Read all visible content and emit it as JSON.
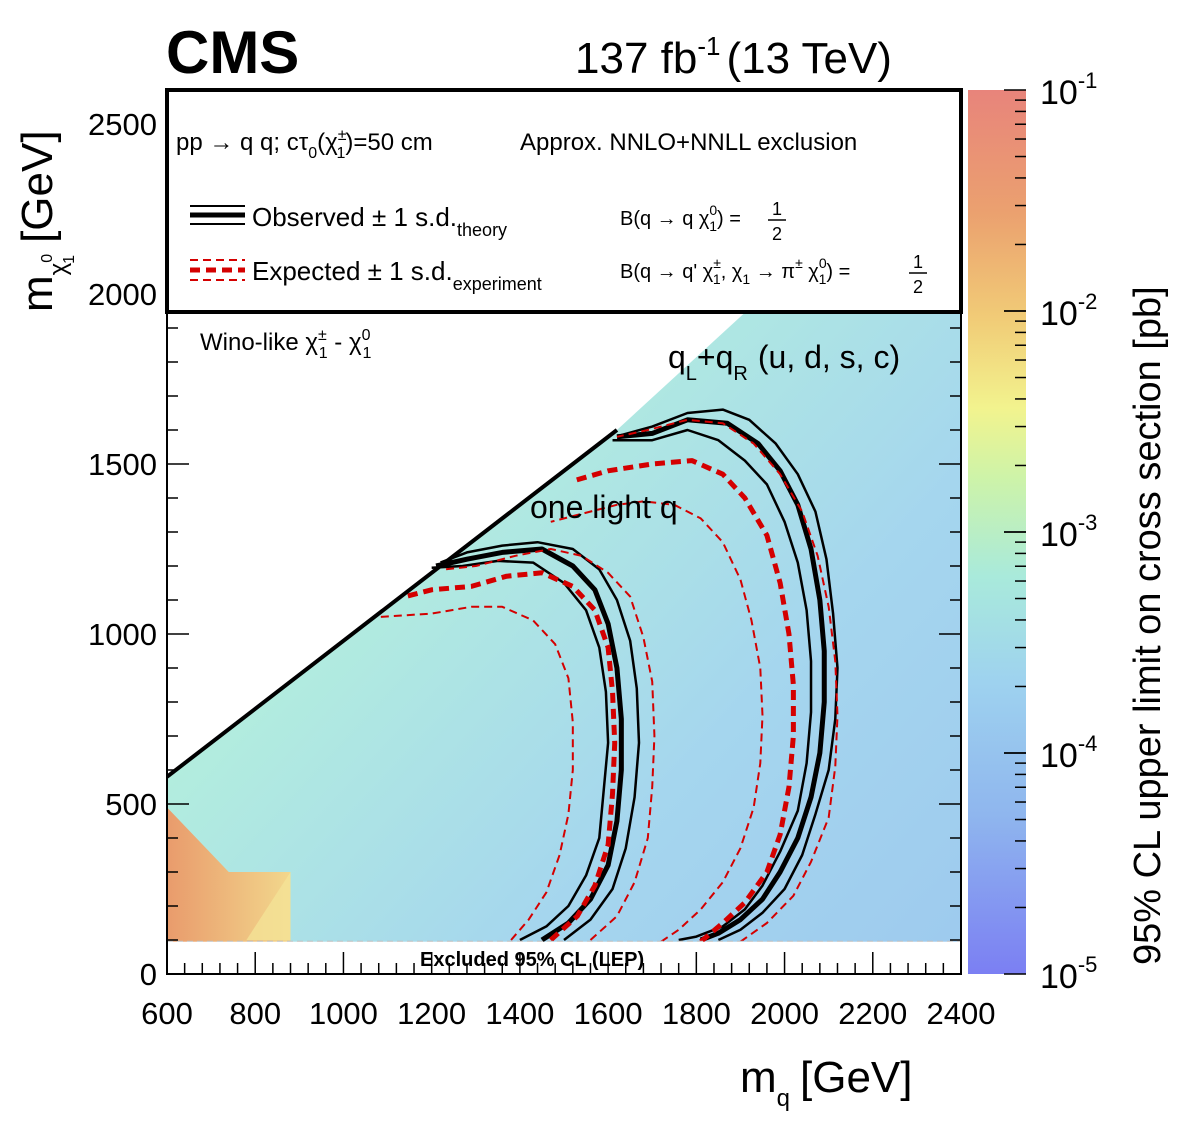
{
  "header": {
    "experiment": "CMS",
    "lumi": "137 fb",
    "lumi_exp": "-1",
    "energy": "(13 TeV)"
  },
  "legend": {
    "process_a": "pp → ",
    "process_b": "q",
    "process_c": " q",
    "process_d": "; cτ",
    "process_e": "0",
    "process_f": "(χ",
    "process_g": "±",
    "process_h": "1",
    "process_i": ")=50 cm",
    "exclusion": "Approx. NNLO+NNLL exclusion",
    "observed": "Observed ± 1 s.d.",
    "observed_sub": "theory",
    "expected": "Expected ± 1 s.d.",
    "expected_sub": "experiment",
    "br1": "B(q → q χ",
    "br1_sup": "0",
    "br1_sub": "1",
    "br1_end": ") =",
    "br2": "B(q → q' χ",
    "br2_sup": "±",
    "br2_sub": "1",
    "br2_mid": ", χ",
    "br2_mid_sub": "1",
    "br2_arrow": " → π",
    "br2_pi_sup": "±",
    "br2_chi": " χ",
    "br2_chi_sup": "0",
    "br2_chi_sub": "1",
    "br2_end": ") =",
    "half_num": "1",
    "half_den": "2"
  },
  "annotations": {
    "wino": "Wino-like χ",
    "wino_sup": "±",
    "wino_sub": "1",
    "wino_dash": " - χ",
    "wino_sup2": "0",
    "wino_sub2": "1",
    "ql": "q",
    "ql_sub": "L",
    "plus": "+q",
    "qr_sub": "R",
    "flavors": "(u, d, s, c)",
    "one_light": "one light q",
    "lep": "Excluded 95% CL (LEP)"
  },
  "chart_data": {
    "type": "heatmap",
    "title": "CMS 137 fb-1 (13 TeV)",
    "xlabel": "m",
    "xlabel_sub": "q",
    "xlabel_unit": "[GeV]",
    "ylabel": "m",
    "ylabel_sub": "χ",
    "ylabel_sub2": "0",
    "ylabel_sub3": "1",
    "ylabel_unit": "[GeV]",
    "zlabel": "95% CL upper limit on cross section [pb]",
    "xlim": [
      600,
      2400
    ],
    "ylim": [
      0,
      2600
    ],
    "zlim": [
      1e-05,
      0.1
    ],
    "xticks": [
      600,
      800,
      1000,
      1200,
      1400,
      1600,
      1800,
      2000,
      2200,
      2400
    ],
    "yticks": [
      0,
      500,
      1000,
      1500,
      2000,
      2500
    ],
    "zticks": [
      {
        "base": "10",
        "exp": "-1",
        "value": 0.1
      },
      {
        "base": "10",
        "exp": "-2",
        "value": 0.01
      },
      {
        "base": "10",
        "exp": "-3",
        "value": 0.001
      },
      {
        "base": "10",
        "exp": "-4",
        "value": 0.0001
      },
      {
        "base": "10",
        "exp": "-5",
        "value": 1e-05
      }
    ],
    "diagonal": [
      [
        600,
        580
      ],
      [
        1620,
        1600
      ]
    ],
    "lep_limit_y": 95,
    "series": [
      {
        "name": "Observed (q_L+q_R)",
        "style": "observed-central",
        "points": [
          [
            1810,
            100
          ],
          [
            1850,
            120
          ],
          [
            1900,
            160
          ],
          [
            1950,
            220
          ],
          [
            1990,
            300
          ],
          [
            2030,
            400
          ],
          [
            2060,
            520
          ],
          [
            2080,
            650
          ],
          [
            2090,
            800
          ],
          [
            2090,
            950
          ],
          [
            2080,
            1100
          ],
          [
            2060,
            1250
          ],
          [
            2030,
            1380
          ],
          [
            1990,
            1480
          ],
          [
            1940,
            1560
          ],
          [
            1870,
            1620
          ],
          [
            1780,
            1630
          ],
          [
            1700,
            1590
          ],
          [
            1620,
            1580
          ]
        ]
      },
      {
        "name": "Observed +1 s.d. (q_L+q_R)",
        "style": "observed-band",
        "points": [
          [
            1850,
            100
          ],
          [
            1900,
            130
          ],
          [
            1950,
            180
          ],
          [
            2000,
            250
          ],
          [
            2040,
            350
          ],
          [
            2070,
            470
          ],
          [
            2100,
            600
          ],
          [
            2115,
            750
          ],
          [
            2120,
            900
          ],
          [
            2110,
            1060
          ],
          [
            2095,
            1220
          ],
          [
            2070,
            1360
          ],
          [
            2030,
            1470
          ],
          [
            1980,
            1560
          ],
          [
            1920,
            1630
          ],
          [
            1860,
            1660
          ],
          [
            1780,
            1650
          ],
          [
            1700,
            1610
          ],
          [
            1630,
            1585
          ]
        ]
      },
      {
        "name": "Observed -1 s.d. (q_L+q_R)",
        "style": "observed-band",
        "points": [
          [
            1760,
            100
          ],
          [
            1800,
            110
          ],
          [
            1860,
            140
          ],
          [
            1910,
            190
          ],
          [
            1950,
            260
          ],
          [
            1990,
            360
          ],
          [
            2030,
            480
          ],
          [
            2050,
            620
          ],
          [
            2060,
            770
          ],
          [
            2060,
            920
          ],
          [
            2050,
            1070
          ],
          [
            2030,
            1210
          ],
          [
            2000,
            1330
          ],
          [
            1960,
            1440
          ],
          [
            1910,
            1510
          ],
          [
            1850,
            1570
          ],
          [
            1780,
            1600
          ],
          [
            1700,
            1570
          ],
          [
            1610,
            1570
          ]
        ]
      },
      {
        "name": "Expected (q_L+q_R)",
        "style": "expected-central",
        "points": [
          [
            1810,
            95
          ],
          [
            1860,
            150
          ],
          [
            1910,
            210
          ],
          [
            1960,
            300
          ],
          [
            1990,
            410
          ],
          [
            2010,
            550
          ],
          [
            2020,
            700
          ],
          [
            2020,
            850
          ],
          [
            2010,
            1000
          ],
          [
            1990,
            1150
          ],
          [
            1960,
            1290
          ],
          [
            1910,
            1400
          ],
          [
            1860,
            1470
          ],
          [
            1790,
            1510
          ],
          [
            1700,
            1500
          ],
          [
            1600,
            1480
          ],
          [
            1520,
            1450
          ]
        ]
      },
      {
        "name": "Expected +1 s.d. (q_L+q_R)",
        "style": "expected-band",
        "points": [
          [
            1900,
            95
          ],
          [
            1960,
            150
          ],
          [
            2020,
            230
          ],
          [
            2060,
            330
          ],
          [
            2100,
            460
          ],
          [
            2115,
            610
          ],
          [
            2120,
            760
          ],
          [
            2115,
            920
          ],
          [
            2100,
            1080
          ],
          [
            2075,
            1230
          ],
          [
            2040,
            1360
          ],
          [
            1990,
            1470
          ],
          [
            1930,
            1560
          ],
          [
            1860,
            1620
          ],
          [
            1780,
            1630
          ],
          [
            1690,
            1600
          ],
          [
            1620,
            1580
          ]
        ]
      },
      {
        "name": "Expected -1 s.d. (q_L+q_R)",
        "style": "expected-band",
        "points": [
          [
            1720,
            95
          ],
          [
            1760,
            130
          ],
          [
            1810,
            190
          ],
          [
            1860,
            270
          ],
          [
            1900,
            370
          ],
          [
            1930,
            490
          ],
          [
            1945,
            620
          ],
          [
            1950,
            760
          ],
          [
            1945,
            900
          ],
          [
            1925,
            1040
          ],
          [
            1900,
            1160
          ],
          [
            1860,
            1270
          ],
          [
            1810,
            1340
          ],
          [
            1750,
            1380
          ],
          [
            1680,
            1390
          ],
          [
            1620,
            1380
          ],
          [
            1530,
            1350
          ],
          [
            1470,
            1330
          ]
        ]
      },
      {
        "name": "Observed (one light q)",
        "style": "observed-central",
        "points": [
          [
            1450,
            100
          ],
          [
            1510,
            150
          ],
          [
            1560,
            220
          ],
          [
            1600,
            320
          ],
          [
            1620,
            450
          ],
          [
            1630,
            600
          ],
          [
            1630,
            750
          ],
          [
            1620,
            900
          ],
          [
            1600,
            1030
          ],
          [
            1570,
            1130
          ],
          [
            1520,
            1200
          ],
          [
            1450,
            1250
          ],
          [
            1360,
            1240
          ],
          [
            1280,
            1220
          ],
          [
            1210,
            1200
          ]
        ]
      },
      {
        "name": "Observed +1 s.d. (one light q)",
        "style": "observed-band",
        "points": [
          [
            1500,
            100
          ],
          [
            1560,
            160
          ],
          [
            1610,
            250
          ],
          [
            1640,
            370
          ],
          [
            1660,
            520
          ],
          [
            1670,
            680
          ],
          [
            1665,
            840
          ],
          [
            1650,
            980
          ],
          [
            1620,
            1100
          ],
          [
            1580,
            1190
          ],
          [
            1520,
            1250
          ],
          [
            1440,
            1270
          ],
          [
            1360,
            1260
          ],
          [
            1280,
            1240
          ],
          [
            1220,
            1210
          ]
        ]
      },
      {
        "name": "Observed -1 s.d. (one light q)",
        "style": "observed-band",
        "points": [
          [
            1400,
            100
          ],
          [
            1460,
            140
          ],
          [
            1510,
            200
          ],
          [
            1550,
            290
          ],
          [
            1580,
            400
          ],
          [
            1590,
            540
          ],
          [
            1600,
            680
          ],
          [
            1595,
            830
          ],
          [
            1580,
            960
          ],
          [
            1550,
            1070
          ],
          [
            1500,
            1150
          ],
          [
            1430,
            1210
          ],
          [
            1350,
            1215
          ],
          [
            1270,
            1200
          ],
          [
            1200,
            1195
          ]
        ]
      },
      {
        "name": "Expected (one light q)",
        "style": "expected-central",
        "points": [
          [
            1470,
            100
          ],
          [
            1530,
            170
          ],
          [
            1570,
            260
          ],
          [
            1600,
            380
          ],
          [
            1610,
            530
          ],
          [
            1615,
            680
          ],
          [
            1610,
            830
          ],
          [
            1600,
            960
          ],
          [
            1570,
            1070
          ],
          [
            1520,
            1140
          ],
          [
            1450,
            1180
          ],
          [
            1370,
            1170
          ],
          [
            1290,
            1140
          ],
          [
            1200,
            1130
          ],
          [
            1140,
            1110
          ]
        ]
      },
      {
        "name": "Expected +1 s.d. (one light q)",
        "style": "expected-band",
        "points": [
          [
            1560,
            100
          ],
          [
            1620,
            170
          ],
          [
            1660,
            270
          ],
          [
            1690,
            400
          ],
          [
            1700,
            550
          ],
          [
            1705,
            700
          ],
          [
            1700,
            860
          ],
          [
            1680,
            990
          ],
          [
            1650,
            1110
          ],
          [
            1600,
            1180
          ],
          [
            1540,
            1230
          ],
          [
            1470,
            1250
          ],
          [
            1390,
            1230
          ],
          [
            1300,
            1200
          ],
          [
            1230,
            1190
          ]
        ]
      },
      {
        "name": "Expected -1 s.d. (one light q)",
        "style": "expected-band",
        "points": [
          [
            1380,
            100
          ],
          [
            1420,
            160
          ],
          [
            1460,
            240
          ],
          [
            1490,
            350
          ],
          [
            1510,
            470
          ],
          [
            1520,
            600
          ],
          [
            1520,
            740
          ],
          [
            1510,
            870
          ],
          [
            1480,
            970
          ],
          [
            1430,
            1040
          ],
          [
            1360,
            1080
          ],
          [
            1290,
            1080
          ],
          [
            1200,
            1060
          ],
          [
            1080,
            1050
          ]
        ]
      }
    ]
  }
}
